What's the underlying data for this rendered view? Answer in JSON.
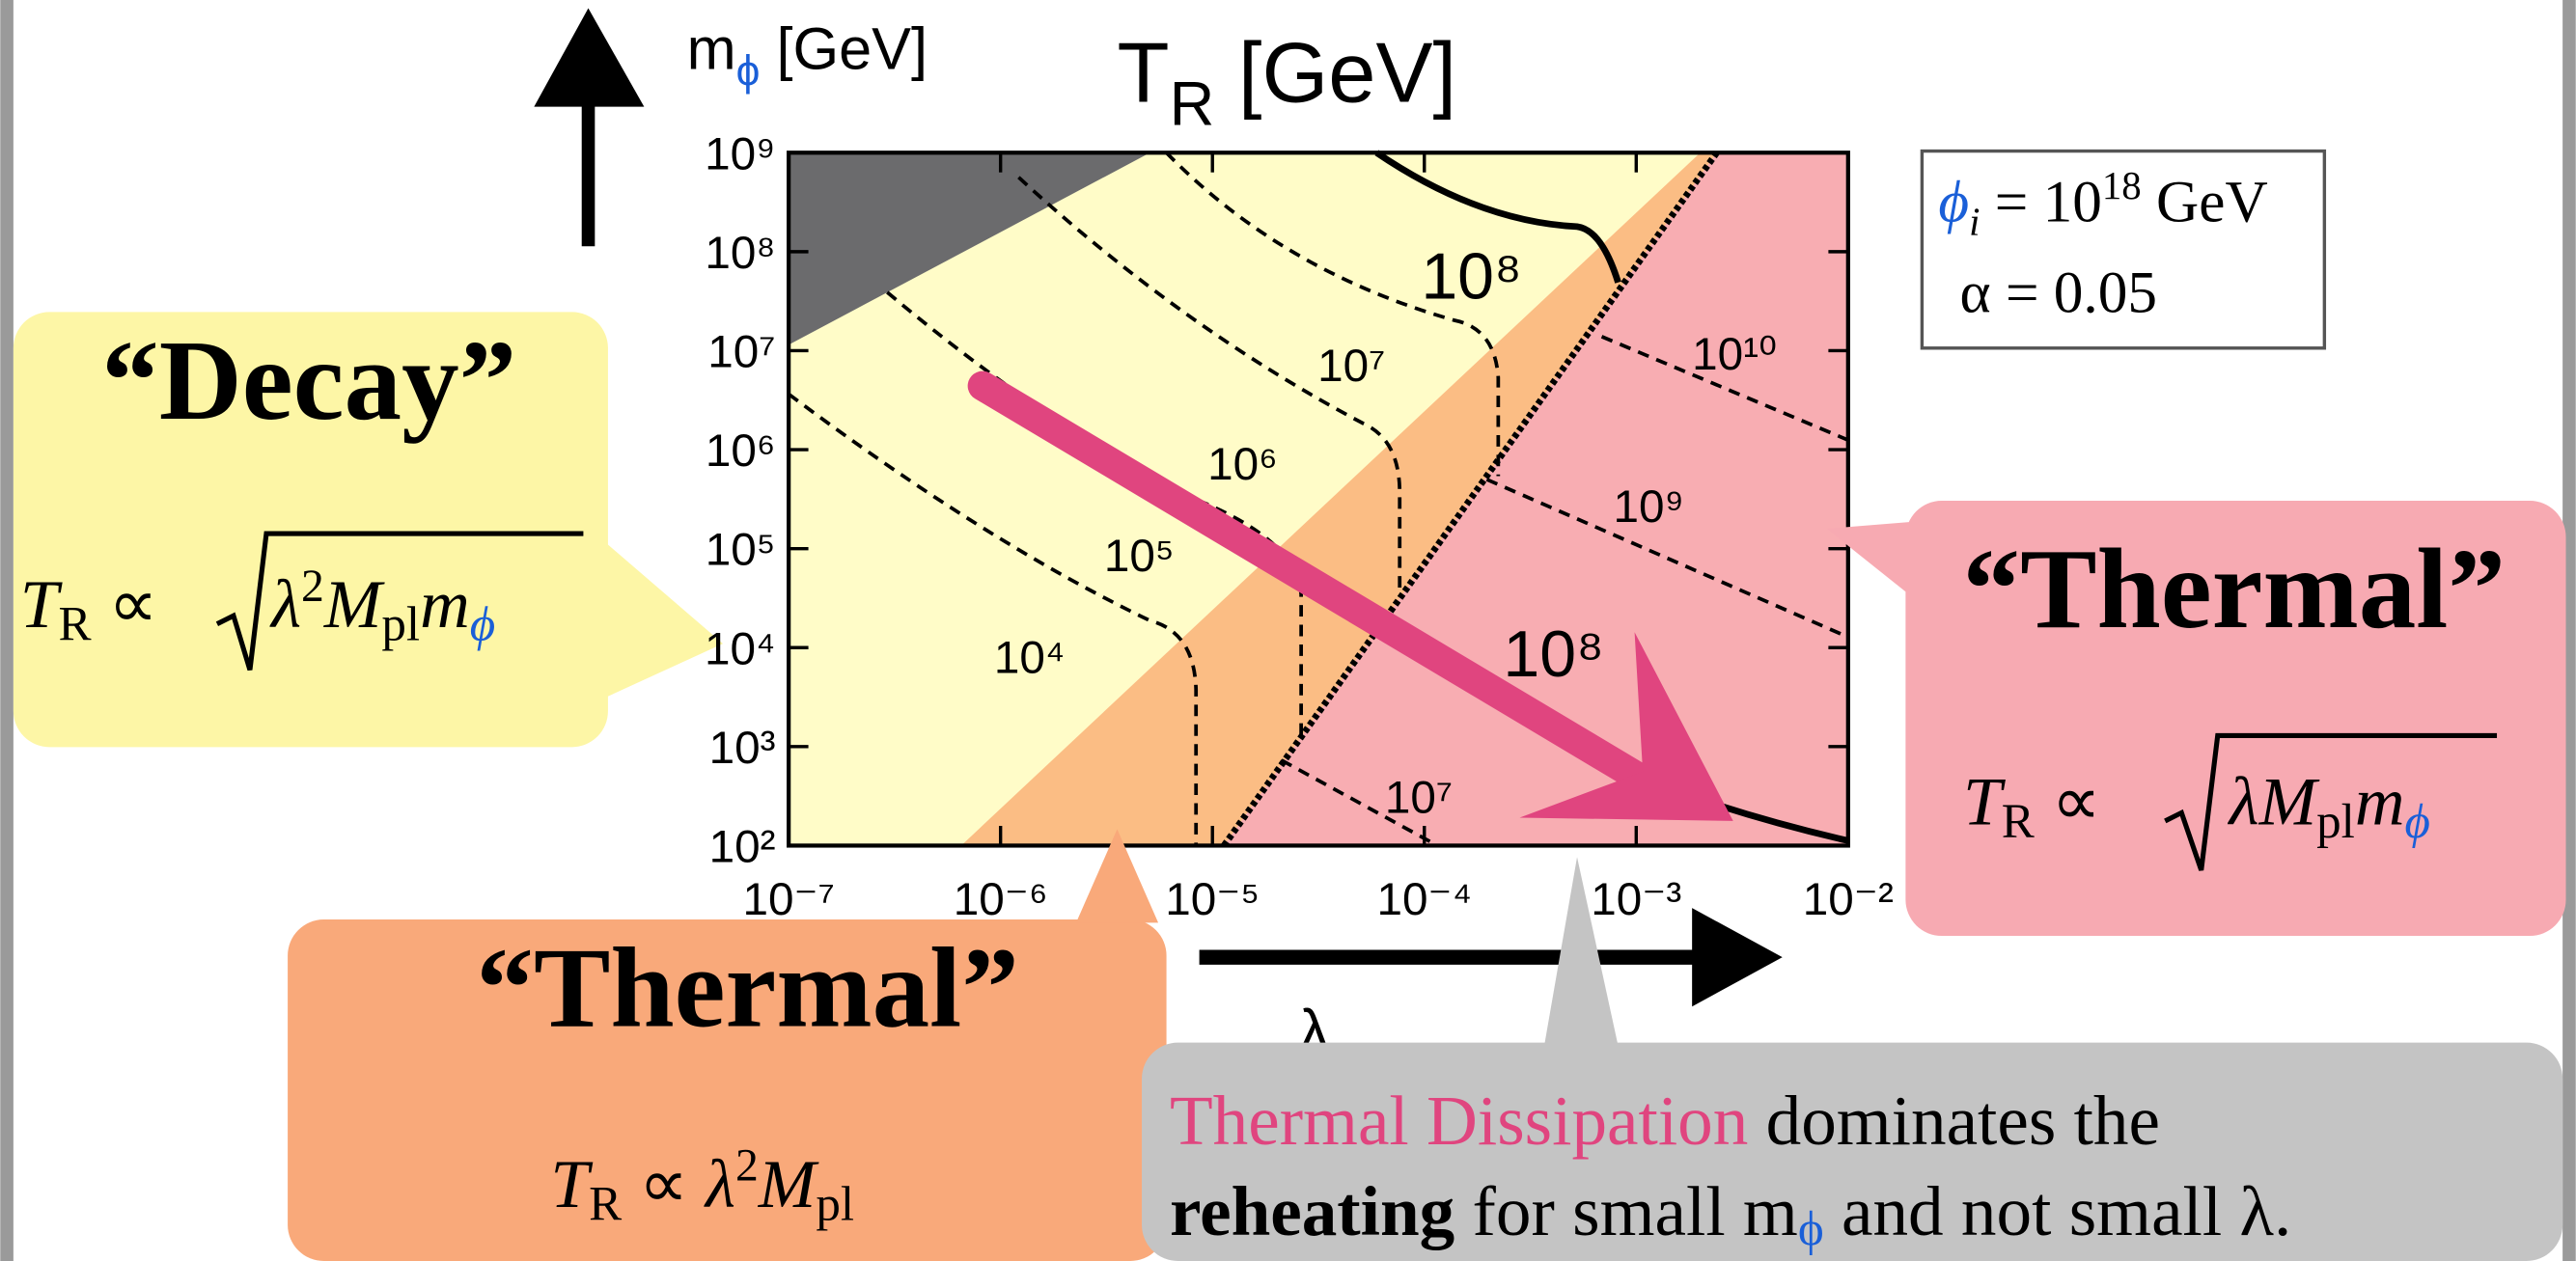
{
  "chart_data": {
    "type": "contour",
    "title": {
      "main": "T",
      "sub": "R",
      "rest": " [GeV]"
    },
    "y_label": {
      "main": "m",
      "sub": "ϕ",
      "rest": " [GeV]"
    },
    "x_label": "λ",
    "log_x": true,
    "log_y": true,
    "xlim": [
      1e-07,
      0.01
    ],
    "ylim": [
      100.0,
      1000000000.0
    ],
    "xticks": [
      {
        "value": 1e-07,
        "label": "10⁻⁷"
      },
      {
        "value": 1e-06,
        "label": "10⁻⁶"
      },
      {
        "value": 1e-05,
        "label": "10⁻⁵"
      },
      {
        "value": 0.0001,
        "label": "10⁻⁴"
      },
      {
        "value": 0.001,
        "label": "10⁻³"
      },
      {
        "value": 0.01,
        "label": "10⁻²"
      }
    ],
    "yticks": [
      {
        "value": 100.0,
        "label": "10²"
      },
      {
        "value": 1000.0,
        "label": "10³"
      },
      {
        "value": 10000.0,
        "label": "10⁴"
      },
      {
        "value": 100000.0,
        "label": "10⁵"
      },
      {
        "value": 1000000.0,
        "label": "10⁶"
      },
      {
        "value": 10000000.0,
        "label": "10⁷"
      },
      {
        "value": 100000000.0,
        "label": "10⁸"
      },
      {
        "value": 1000000000.0,
        "label": "10⁹"
      }
    ],
    "contour_labels": [
      "10⁴",
      "10⁵",
      "10⁶",
      "10⁷",
      "10⁸",
      "10⁸",
      "10⁷",
      "10⁹",
      "10¹⁰"
    ],
    "legend": {
      "phi": "ϕ",
      "phi_sub": "i",
      "eq": " = 10",
      "exp": "18",
      "unit": " GeV",
      "alpha": "α = 0.05"
    }
  },
  "callouts": {
    "decay": {
      "title": "“Decay”",
      "T": "T",
      "sub": "R",
      "rel": " ∝ ",
      "lambda": "λ",
      "sq": "2",
      "M": "M",
      "pl": "pl",
      "m": "m",
      "phi": "ϕ"
    },
    "thermal_strong": {
      "title": "“Thermal”",
      "T": "T",
      "sub": "R",
      "rel": " ∝ ",
      "lambda": "λ",
      "M": "M",
      "pl": "pl",
      "m": "m",
      "phi": "ϕ"
    },
    "thermal_weak": {
      "title": "“Thermal”",
      "T": "T",
      "sub": "R",
      "rel": " ∝ ",
      "lambda": "λ",
      "sq": "2",
      "M": "M",
      "pl": "pl"
    }
  },
  "note": {
    "highlight": "Thermal Dissipation",
    "rest1": " dominates the",
    "bold": "reheating",
    "rest2": " for small m",
    "sub": "ϕ",
    "rest3": " and not small λ."
  }
}
